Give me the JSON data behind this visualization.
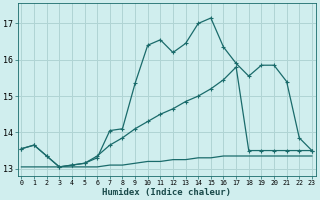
{
  "xlabel": "Humidex (Indice chaleur)",
  "background_color": "#d0eeee",
  "grid_color": "#b0d4d4",
  "line_color": "#1a6b6b",
  "x": [
    0,
    1,
    2,
    3,
    4,
    5,
    6,
    7,
    8,
    9,
    10,
    11,
    12,
    13,
    14,
    15,
    16,
    17,
    18,
    19,
    20,
    21,
    22,
    23
  ],
  "line1": [
    13.55,
    13.65,
    13.35,
    13.05,
    13.1,
    13.15,
    13.3,
    14.05,
    14.1,
    15.35,
    16.4,
    16.55,
    16.2,
    16.45,
    17.0,
    17.15,
    16.35,
    15.9,
    15.55,
    15.85,
    15.85,
    15.4,
    13.85,
    13.5
  ],
  "line2": [
    13.55,
    13.65,
    13.35,
    13.05,
    13.1,
    13.15,
    13.35,
    13.65,
    13.85,
    14.1,
    14.3,
    14.5,
    14.65,
    14.85,
    15.0,
    15.2,
    15.45,
    15.8,
    13.5,
    13.5,
    13.5,
    13.5,
    13.5,
    13.5
  ],
  "line3": [
    13.05,
    13.05,
    13.05,
    13.05,
    13.05,
    13.05,
    13.05,
    13.1,
    13.1,
    13.15,
    13.2,
    13.2,
    13.25,
    13.25,
    13.3,
    13.3,
    13.35,
    13.35,
    13.35,
    13.35,
    13.35,
    13.35,
    13.35,
    13.35
  ],
  "ylim": [
    12.8,
    17.55
  ],
  "yticks": [
    13,
    14,
    15,
    16,
    17
  ],
  "xlim": [
    -0.3,
    23.3
  ]
}
